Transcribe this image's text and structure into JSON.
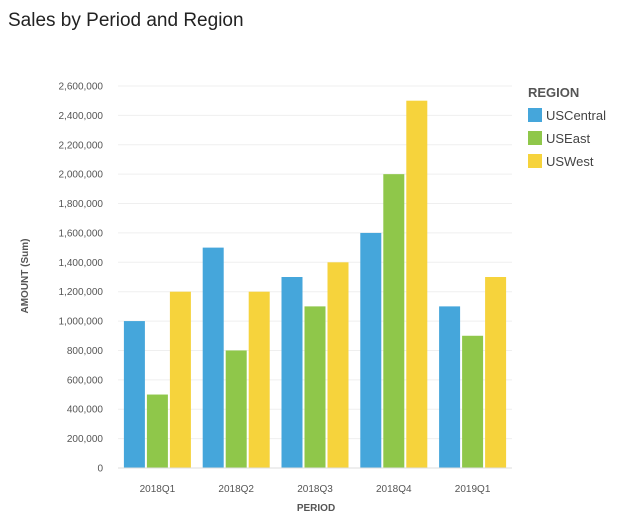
{
  "chart_data": {
    "type": "bar",
    "title": "Sales by Period and Region",
    "xlabel": "PERIOD",
    "ylabel": "AMOUNT (Sum)",
    "categories": [
      "2018Q1",
      "2018Q2",
      "2018Q3",
      "2018Q4",
      "2019Q1"
    ],
    "series": [
      {
        "name": "USCentral",
        "color": "#45a6db",
        "values": [
          1000000,
          1500000,
          1300000,
          1600000,
          1100000
        ]
      },
      {
        "name": "USEast",
        "color": "#8fc74a",
        "values": [
          500000,
          800000,
          1100000,
          2000000,
          900000
        ]
      },
      {
        "name": "USWest",
        "color": "#f6d33c",
        "values": [
          1200000,
          1200000,
          1400000,
          2500000,
          1300000
        ]
      }
    ],
    "yticks": [
      "0",
      "200,000",
      "400,000",
      "600,000",
      "800,000",
      "1,000,000",
      "1,200,000",
      "1,400,000",
      "1,600,000",
      "1,800,000",
      "2,000,000",
      "2,200,000",
      "2,400,000",
      "2,600,000"
    ],
    "ylim": [
      0,
      2600000
    ],
    "grid": true,
    "legend": {
      "title": "REGION",
      "position": "top-right"
    }
  }
}
